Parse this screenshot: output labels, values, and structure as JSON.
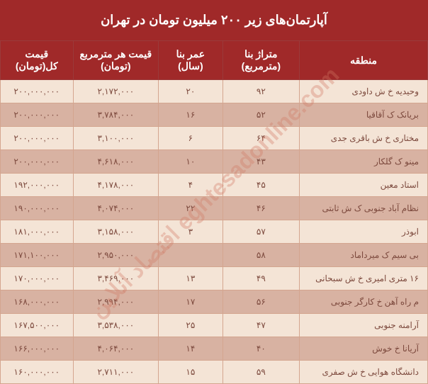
{
  "title": "آپارتمان‌های زیر ۲۰۰ میلیون تومان در تهران",
  "watermark": "eghtesadonline.com اقتصاد آنلاین",
  "columns": {
    "region": "منطقه",
    "area": "متراژ بنا (مترمربع)",
    "age": "عمر بنا (سال)",
    "price_sqm": "قیمت هر مترمربع (تومان)",
    "total": "قیمت کل(تومان)"
  },
  "rows": [
    {
      "region": "وحیدیه خ ش داودی",
      "area": "۹۲",
      "age": "۲۰",
      "price_sqm": "۲,۱۷۲,۰۰۰",
      "total": "۲۰۰,۰۰۰,۰۰۰"
    },
    {
      "region": "بریانک ک آقاقیا",
      "area": "۵۲",
      "age": "۱۶",
      "price_sqm": "۳,۷۸۴,۰۰۰",
      "total": "۲۰۰,۰۰۰,۰۰۰"
    },
    {
      "region": "مختاری خ ش باقری جدی",
      "area": "۶۴",
      "age": "۶",
      "price_sqm": "۳,۱۰۰,۰۰۰",
      "total": "۲۰۰,۰۰۰,۰۰۰"
    },
    {
      "region": "مینو ک گلکار",
      "area": "۴۳",
      "age": "۱۰",
      "price_sqm": "۴,۶۱۸,۰۰۰",
      "total": "۲۰۰,۰۰۰,۰۰۰"
    },
    {
      "region": "استاد معین",
      "area": "۴۵",
      "age": "۴",
      "price_sqm": "۴,۱۷۸,۰۰۰",
      "total": "۱۹۲,۰۰۰,۰۰۰"
    },
    {
      "region": "نظام آباد جنوبی ک ش ثابتی",
      "area": "۴۶",
      "age": "۲۲",
      "price_sqm": "۴,۰۷۴,۰۰۰",
      "total": "۱۹۰,۰۰۰,۰۰۰"
    },
    {
      "region": "ابوذر",
      "area": "۵۷",
      "age": "۳",
      "price_sqm": "۳,۱۵۸,۰۰۰",
      "total": "۱۸۱,۰۰۰,۰۰۰"
    },
    {
      "region": "بی سیم ک میرداماد",
      "area": "۵۸",
      "age": "",
      "price_sqm": "۲,۹۵۰,۰۰۰",
      "total": "۱۷۱,۱۰۰,۰۰۰"
    },
    {
      "region": "۱۶ متری امیری خ ش سبحانی",
      "area": "۴۹",
      "age": "۱۳",
      "price_sqm": "۳,۴۶۹,۰۰۰",
      "total": "۱۷۰,۰۰۰,۰۰۰"
    },
    {
      "region": "م راه آهن خ کارگر جنوبی",
      "area": "۵۶",
      "age": "۱۷",
      "price_sqm": "۲,۹۹۴,۰۰۰",
      "total": "۱۶۸,۰۰۰,۰۰۰"
    },
    {
      "region": "آرامنه جنوبی",
      "area": "۴۷",
      "age": "۲۵",
      "price_sqm": "۳,۵۳۸,۰۰۰",
      "total": "۱۶۷,۵۰۰,۰۰۰"
    },
    {
      "region": "آریانا خ خوش",
      "area": "۴۰",
      "age": "۱۴",
      "price_sqm": "۴,۰۶۴,۰۰۰",
      "total": "۱۶۶,۰۰۰,۰۰۰"
    },
    {
      "region": "دانشگاه هوایی خ ش صفری",
      "area": "۵۹",
      "age": "۱۵",
      "price_sqm": "۲,۷۱۱,۰۰۰",
      "total": "۱۶۰,۰۰۰,۰۰۰"
    }
  ],
  "styling": {
    "header_bg": "#a02929",
    "header_text_color": "#ffffff",
    "row_odd_bg": "#f4e4d6",
    "row_even_bg": "#d8b2a2",
    "cell_text_color": "#7d4a3e",
    "border_color": "#d4a58f",
    "title_fontsize": 18,
    "header_fontsize": 14,
    "cell_fontsize": 12,
    "column_widths": {
      "region": "30%",
      "area": "18%",
      "age": "15%",
      "price_sqm": "20%",
      "total": "17%"
    }
  }
}
